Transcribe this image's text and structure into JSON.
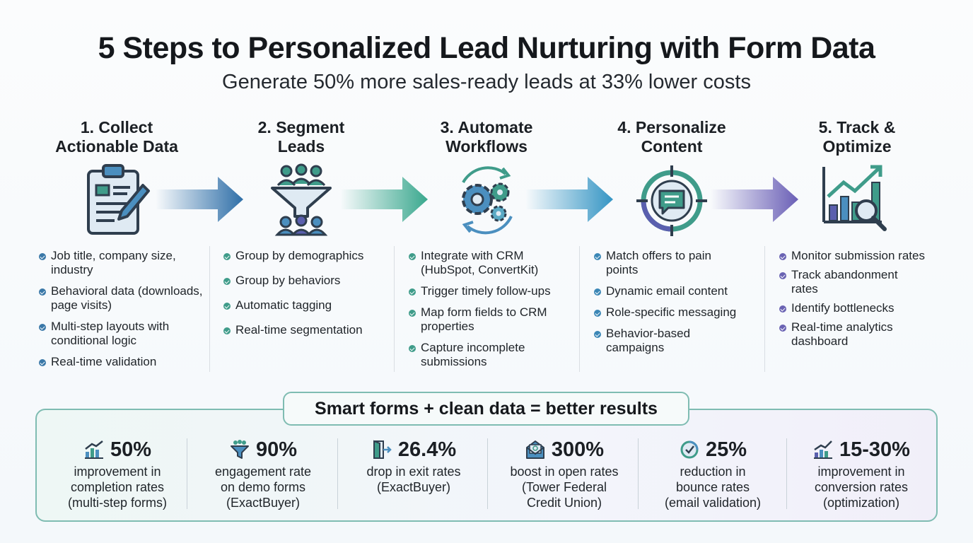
{
  "title": "5 Steps to Personalized Lead Nurturing with Form Data",
  "subtitle": "Generate 50% more sales-ready leads at 33% lower costs",
  "steps": [
    {
      "title_line1": "1. Collect",
      "title_line2": "Actionable Data",
      "icon": "clipboard-form-icon",
      "color": "#3a78a8",
      "items": [
        "Job title, company size, industry",
        "Behavioral data (downloads, page visits)",
        "Multi-step layouts with conditional logic",
        "Real-time validation"
      ]
    },
    {
      "title_line1": "2. Segment",
      "title_line2": "Leads",
      "icon": "funnel-people-icon",
      "color": "#3f9c8a",
      "items": [
        "Group by demographics",
        "Group by behaviors",
        "Automatic tagging",
        "Real-time segmentation"
      ]
    },
    {
      "title_line1": "3. Automate",
      "title_line2": "Workflows",
      "icon": "gears-cycle-icon",
      "color": "#3f8fb4",
      "items": [
        "Integrate with CRM (HubSpot, ConvertKit)",
        "Trigger timely follow-ups",
        "Map form fields to CRM properties",
        "Capture incomplete submissions"
      ]
    },
    {
      "title_line1": "4. Personalize",
      "title_line2": "Content",
      "icon": "target-chat-icon",
      "color": "#3b87b6",
      "items": [
        "Match offers to pain points",
        "Dynamic email content",
        "Role-specific messaging",
        "Behavior-based campaigns"
      ]
    },
    {
      "title_line1": "5. Track &",
      "title_line2": "Optimize",
      "icon": "chart-magnifier-icon",
      "color": "#6a63b3",
      "items": [
        "Monitor submission rates",
        "Track abandonment rates",
        "Identify bottlenecks",
        "Real-time analytics dashboard"
      ]
    }
  ],
  "banner": "Smart forms + clean data = better results",
  "stats": [
    {
      "value": "50%",
      "icon": "bar-chart-up-icon",
      "lines": [
        "improvement in",
        "completion rates",
        "(multi-step forms)"
      ]
    },
    {
      "value": "90%",
      "icon": "funnel-icon",
      "lines": [
        "engagement rate",
        "on demo forms",
        "(ExactBuyer)"
      ]
    },
    {
      "value": "26.4%",
      "icon": "exit-door-icon",
      "lines": [
        "drop in exit rates",
        "(ExactBuyer)"
      ]
    },
    {
      "value": "300%",
      "icon": "open-envelope-icon",
      "lines": [
        "boost in open rates",
        "(Tower Federal",
        "Credit Union)"
      ]
    },
    {
      "value": "25%",
      "icon": "target-check-icon",
      "lines": [
        "reduction in",
        "bounce rates",
        "(email validation)"
      ]
    },
    {
      "value": "15-30%",
      "icon": "growth-chart-icon",
      "lines": [
        "improvement in",
        "conversion rates",
        "(optimization)"
      ]
    }
  ]
}
